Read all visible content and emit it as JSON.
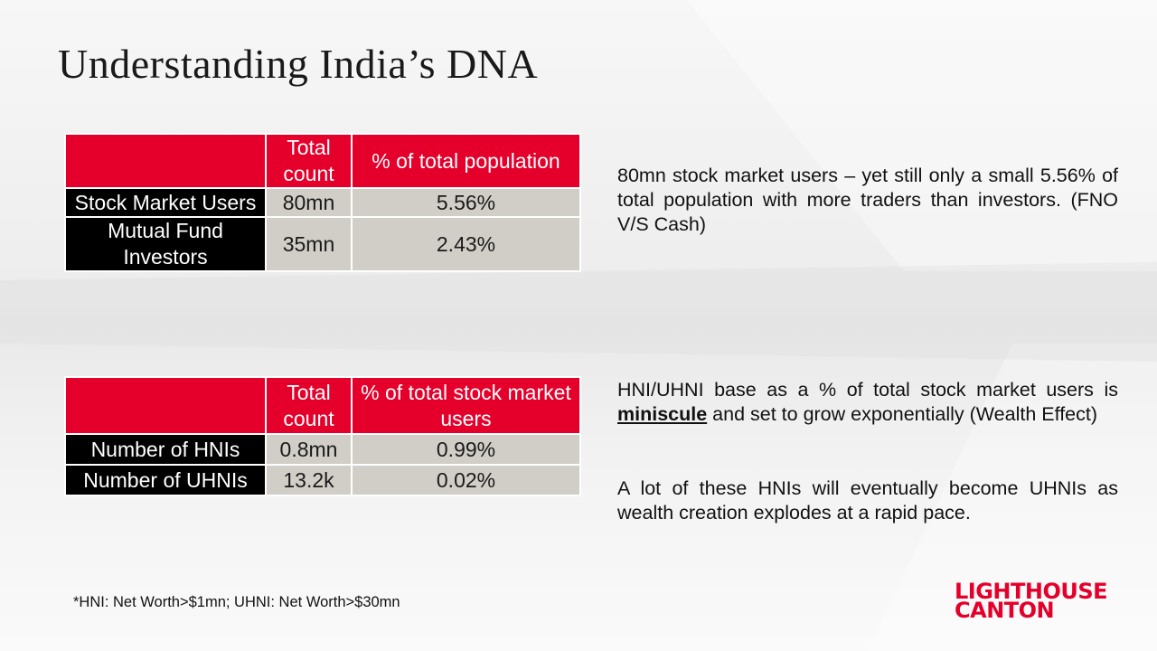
{
  "title": "Understanding India’s DNA",
  "table1": {
    "headers": [
      "",
      "Total count",
      "% of total population"
    ],
    "rows": [
      {
        "label": "Stock Market Users",
        "count": "80mn",
        "pct": "5.56%"
      },
      {
        "label": "Mutual Fund Investors",
        "count": "35mn",
        "pct": "2.43%"
      }
    ]
  },
  "table2": {
    "headers": [
      "",
      "Total count",
      "% of total stock market users"
    ],
    "rows": [
      {
        "label": "Number of HNIs",
        "count": "0.8mn",
        "pct": "0.99%"
      },
      {
        "label": "Number of UHNIs",
        "count": "13.2k",
        "pct": "0.02%"
      }
    ]
  },
  "notes": {
    "n1": "80mn stock market users – yet still only a small 5.56% of total population with more traders than investors. (FNO V/S Cash)",
    "n2_before": "HNI/UHNI base as a % of total stock market users is ",
    "n2_keyword": "miniscule",
    "n2_after": " and set to grow exponentially (Wealth Effect)",
    "n3": "A lot of these HNIs will eventually become UHNIs as wealth creation explodes at a rapid pace."
  },
  "footnote": "*HNI: Net Worth>$1mn; UHNI: Net Worth>$30mn",
  "logo": {
    "line1": "LIGHTHOUSE",
    "line2": "CANTON"
  },
  "colors": {
    "brand_red": "#e4002b",
    "label_black": "#000000",
    "cell_grey": "#d0cec6"
  }
}
